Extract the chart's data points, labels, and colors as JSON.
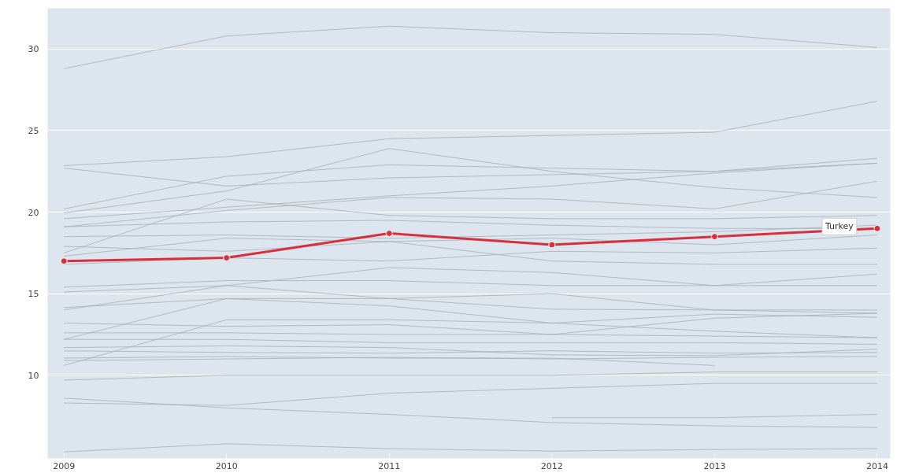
{
  "chart_data": {
    "type": "line",
    "x": [
      2009,
      2010,
      2011,
      2012,
      2013,
      2014
    ],
    "xlim": [
      2008.9,
      2014.08
    ],
    "xticks": [
      2009,
      2010,
      2011,
      2012,
      2013,
      2014
    ],
    "ylim": [
      4.9,
      32.5
    ],
    "yticks": [
      10,
      15,
      20,
      25,
      30
    ],
    "grid": "y",
    "line_style": "solid",
    "series": [
      {
        "color": "#a9b1b8",
        "values": [
          28.8,
          30.8,
          31.4,
          31.0,
          30.9,
          30.1
        ]
      },
      {
        "color": "#a9b1b8",
        "values": [
          22.85,
          23.4,
          24.5,
          24.7,
          24.9,
          26.8
        ]
      },
      {
        "color": "#a9b1b8",
        "values": [
          19.95,
          21.3,
          23.9,
          22.5,
          21.5,
          20.9
        ]
      },
      {
        "color": "#a9b1b8",
        "values": [
          20.2,
          22.2,
          22.9,
          22.7,
          22.5,
          23.3
        ]
      },
      {
        "color": "#a9b1b8",
        "values": [
          22.7,
          21.6,
          22.1,
          22.3,
          22.5,
          23.0
        ]
      },
      {
        "color": "#a9b1b8",
        "values": [
          19.6,
          20.3,
          21.0,
          21.6,
          22.4,
          23.0
        ]
      },
      {
        "color": "#a9b1b8",
        "values": [
          19.1,
          20.1,
          20.9,
          20.8,
          20.2,
          21.9
        ]
      },
      {
        "color": "#a9b1b8",
        "values": [
          17.5,
          20.8,
          19.8,
          19.6,
          19.6,
          19.8
        ]
      },
      {
        "color": "#a9b1b8",
        "values": [
          19.1,
          19.4,
          19.5,
          19.2,
          19.0,
          19.0
        ]
      },
      {
        "color": "#a9b1b8",
        "values": [
          18.5,
          18.6,
          18.4,
          18.6,
          18.8,
          19.2
        ]
      },
      {
        "color": "#a9b1b8",
        "values": [
          17.9,
          17.6,
          18.2,
          18.4,
          18.0,
          18.6
        ]
      },
      {
        "color": "#a9b1b8",
        "values": [
          17.3,
          18.4,
          18.2,
          17.0,
          16.8,
          16.8
        ]
      },
      {
        "color": "#a9b1b8",
        "values": [
          16.8,
          17.2,
          17.0,
          17.6,
          17.5,
          17.8
        ]
      },
      {
        "color": "#a9b1b8",
        "values": [
          15.1,
          15.5,
          16.6,
          16.3,
          15.5,
          16.2
        ]
      },
      {
        "color": "#a9b1b8",
        "values": [
          15.4,
          15.8,
          15.8,
          15.5,
          15.5,
          15.5
        ]
      },
      {
        "color": "#a9b1b8",
        "values": [
          14.0,
          15.5,
          14.7,
          15.0,
          14.0,
          13.8
        ]
      },
      {
        "color": "#a9b1b8",
        "values": [
          14.15,
          14.7,
          14.7,
          14.05,
          14.0,
          14.0
        ]
      },
      {
        "color": "#a9b1b8",
        "values": [
          12.2,
          14.7,
          14.25,
          13.2,
          12.7,
          12.3
        ]
      },
      {
        "color": "#a9b1b8",
        "values": [
          10.6,
          13.4,
          13.4,
          13.2,
          13.75,
          13.55
        ]
      },
      {
        "color": "#a9b1b8",
        "values": [
          13.2,
          13.0,
          13.1,
          12.5,
          12.4,
          12.3
        ]
      },
      {
        "color": "#a9b1b8",
        "values": [
          12.6,
          12.6,
          12.5,
          12.5,
          13.5,
          13.8
        ]
      },
      {
        "color": "#a9b1b8",
        "values": [
          12.2,
          12.2,
          12.0,
          12.0,
          12.0,
          11.9
        ]
      },
      {
        "color": "#a9b1b8",
        "values": [
          11.7,
          11.8,
          11.7,
          11.25,
          11.2,
          11.6
        ]
      },
      {
        "color": "#a9b1b8",
        "values": [
          11.5,
          11.4,
          11.35,
          11.5,
          11.35,
          11.4
        ]
      },
      {
        "color": "#a9b1b8",
        "values": [
          11.05,
          11.15,
          11.05,
          11.05,
          10.6,
          null
        ]
      },
      {
        "color": "#a9b1b8",
        "values": [
          10.9,
          11.0,
          11.1,
          11.0,
          11.1,
          11.15
        ]
      },
      {
        "color": "#a9b1b8",
        "values": [
          9.7,
          10.0,
          10.0,
          10.0,
          10.2,
          10.2
        ]
      },
      {
        "color": "#a9b1b8",
        "values": [
          8.3,
          8.15,
          8.9,
          9.2,
          9.5,
          9.5
        ]
      },
      {
        "color": "#a9b1b8",
        "values": [
          8.6,
          8.0,
          7.6,
          7.1,
          6.9,
          6.8
        ]
      },
      {
        "color": "#a9b1b8",
        "values": [
          null,
          null,
          null,
          7.4,
          7.4,
          7.6
        ]
      },
      {
        "color": "#a9b1b8",
        "values": [
          5.3,
          5.8,
          5.5,
          5.35,
          5.45,
          5.5
        ]
      },
      {
        "name": "Turkey",
        "color": "#d7303c",
        "marker": "circle",
        "values": [
          17.0,
          17.2,
          18.7,
          18.0,
          18.5,
          19.0
        ]
      }
    ]
  }
}
